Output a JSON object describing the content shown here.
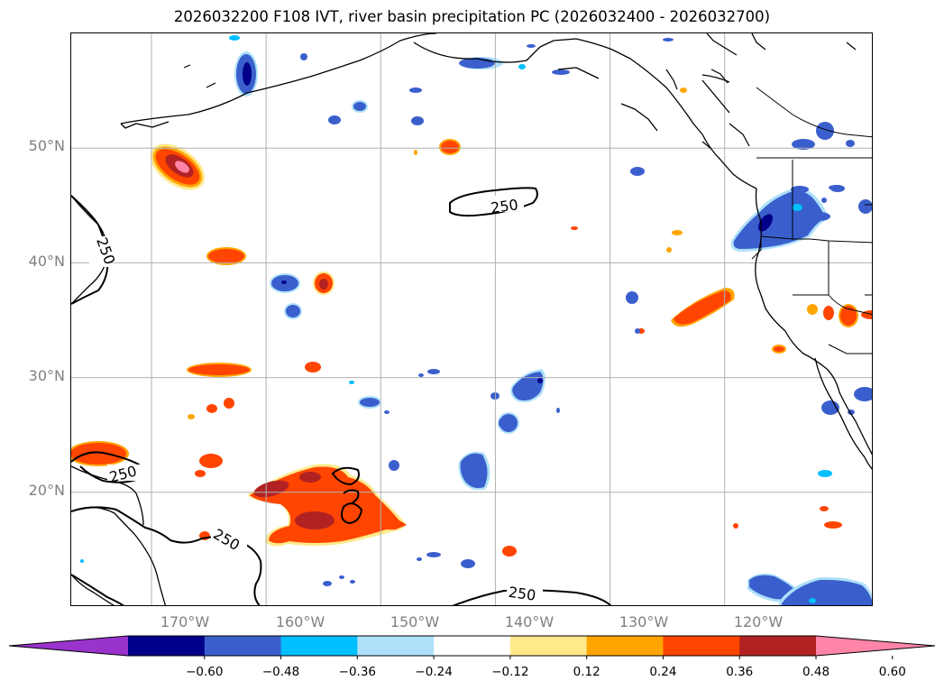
{
  "title": "2026032200 F108 IVT, river basin precipitation PC (2026032400 - 2026032700)",
  "map": {
    "lon_range": [
      -177,
      -107
    ],
    "lat_range": [
      10,
      60
    ],
    "lat_gridlines": [
      20,
      30,
      40,
      50
    ],
    "lon_gridlines": [
      -170,
      -160,
      -150,
      -140,
      -130,
      -120
    ],
    "lat_labels": [
      "20°N",
      "30°N",
      "40°N",
      "50°N"
    ],
    "lon_labels": [
      "170°W",
      "160°W",
      "150°W",
      "140°W",
      "130°W",
      "120°W"
    ],
    "ivt_contour_level": "250",
    "ivt_contour_labels": [
      "250",
      "250",
      "250",
      "250",
      "250"
    ]
  },
  "colorbar": {
    "ticks": [
      "−0.60",
      "−0.48",
      "−0.36",
      "−0.24",
      "−0.12",
      "0.12",
      "0.24",
      "0.36",
      "0.48",
      "0.60"
    ],
    "colors": [
      "#9933cc",
      "#00008b",
      "#3a5fcd",
      "#00bfff",
      "#aee0fa",
      "#ffffff",
      "#ffe98a",
      "#ffa500",
      "#ff4500",
      "#b22222",
      "#ff85a8"
    ]
  },
  "fill_colors": {
    "neg_strong": "#00008b",
    "neg_mid": "#3a5fcd",
    "neg_light": "#00bfff",
    "neg_faint": "#aee0fa",
    "pos_faint": "#ffe98a",
    "pos_light": "#ffa500",
    "pos_mid": "#ff4500",
    "pos_strong": "#b22222",
    "pos_peak": "#ff85a8"
  }
}
